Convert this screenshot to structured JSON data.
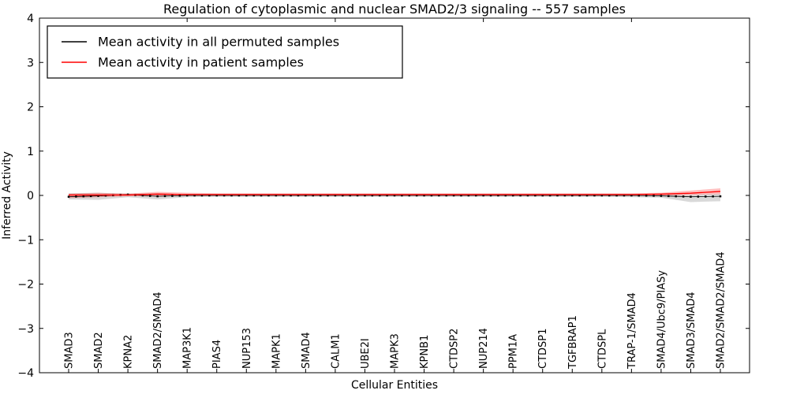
{
  "window": {
    "background": "#ffffff"
  },
  "chart_data": {
    "type": "line",
    "title": "Regulation of cytoplasmic and nuclear SMAD2/3 signaling -- 557 samples",
    "xlabel": "Cellular Entities",
    "ylabel": "Inferred Activity",
    "ylim": [
      -4,
      4
    ],
    "yticks": [
      -4,
      -3,
      -2,
      -1,
      0,
      1,
      2,
      3,
      4
    ],
    "grid": false,
    "legend_position": "upper left",
    "legend": [
      {
        "label": "Mean activity in all permuted samples",
        "color": "#000000"
      },
      {
        "label": "Mean activity in patient samples",
        "color": "#ff0000"
      }
    ],
    "categories": [
      "SMAD3",
      "SMAD2",
      "KPNA2",
      "SMAD2/SMAD4",
      "MAP3K1",
      "PIAS4",
      "NUP153",
      "MAPK1",
      "SMAD4",
      "CALM1",
      "UBE2I",
      "MAPK3",
      "KPNB1",
      "CTDSP2",
      "NUP214",
      "PPM1A",
      "CTDSP1",
      "TGFBRAP1",
      "CTDSPL",
      "TRAP-1/SMAD4",
      "SMAD4/Ubc9/PIASy",
      "SMAD3/SMAD4",
      "SMAD2/SMAD2/SMAD4"
    ],
    "top_tick_indices": [
      4,
      9,
      14,
      19
    ],
    "series": [
      {
        "name": "Mean activity in all permuted samples",
        "color": "#000000",
        "marker": "square",
        "band_color": "#00000026",
        "values": [
          -0.03,
          -0.01,
          0.02,
          -0.02,
          0.0,
          0.0,
          0.0,
          0.0,
          0.0,
          0.0,
          0.0,
          0.0,
          0.0,
          0.0,
          0.0,
          0.0,
          0.0,
          0.0,
          0.0,
          0.0,
          -0.01,
          -0.03,
          -0.02
        ],
        "band_lower": [
          -0.09,
          -0.1,
          -0.04,
          -0.09,
          -0.04,
          -0.03,
          -0.03,
          -0.03,
          -0.03,
          -0.03,
          -0.03,
          -0.03,
          -0.03,
          -0.03,
          -0.03,
          -0.03,
          -0.03,
          -0.03,
          -0.03,
          -0.04,
          -0.05,
          -0.15,
          -0.13
        ],
        "band_upper": [
          0.05,
          0.06,
          0.04,
          0.05,
          0.03,
          0.02,
          0.02,
          0.02,
          0.02,
          0.02,
          0.02,
          0.02,
          0.02,
          0.02,
          0.02,
          0.02,
          0.02,
          0.02,
          0.02,
          0.02,
          0.02,
          0.02,
          0.04
        ]
      },
      {
        "name": "Mean activity in patient samples",
        "color": "#ff0000",
        "marker": "none",
        "band_color": "#ff000040",
        "values": [
          0.01,
          0.01,
          0.01,
          0.03,
          0.02,
          0.02,
          0.02,
          0.02,
          0.02,
          0.02,
          0.02,
          0.02,
          0.02,
          0.02,
          0.02,
          0.02,
          0.02,
          0.02,
          0.02,
          0.02,
          0.03,
          0.05,
          0.09
        ],
        "band_lower": [
          -0.06,
          -0.04,
          -0.02,
          -0.02,
          -0.01,
          -0.01,
          -0.01,
          -0.01,
          -0.01,
          -0.01,
          -0.01,
          -0.01,
          -0.01,
          -0.01,
          -0.01,
          -0.01,
          -0.01,
          -0.01,
          -0.01,
          -0.01,
          0.0,
          0.01,
          0.03
        ],
        "band_upper": [
          0.04,
          0.06,
          0.04,
          0.08,
          0.06,
          0.05,
          0.05,
          0.05,
          0.05,
          0.05,
          0.05,
          0.05,
          0.05,
          0.05,
          0.05,
          0.05,
          0.05,
          0.05,
          0.05,
          0.05,
          0.06,
          0.11,
          0.16
        ]
      }
    ]
  }
}
